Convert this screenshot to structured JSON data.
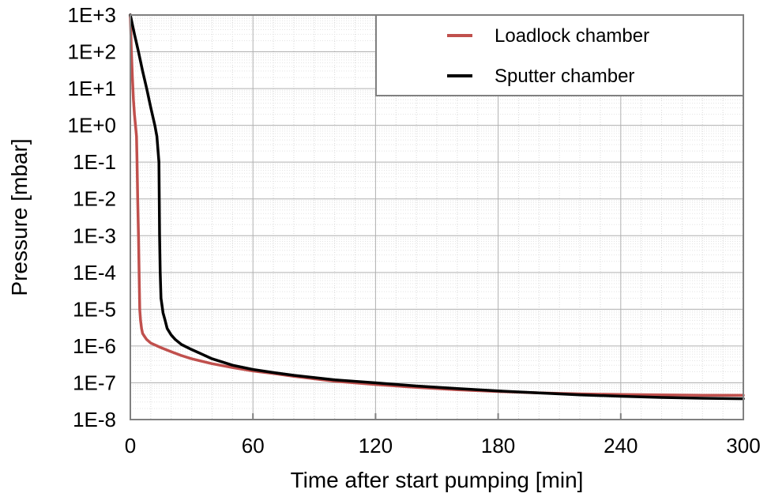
{
  "chart_data": {
    "type": "line",
    "xlabel": "Time after start pumping [min]",
    "ylabel": "Pressure [mbar]",
    "xlim": [
      0,
      300
    ],
    "ylim": [
      1e-08,
      1000
    ],
    "yscale": "log",
    "grid": true,
    "legend_position": "top-right",
    "x_ticks": [
      0,
      60,
      120,
      180,
      240,
      300
    ],
    "x_tick_labels": [
      "0",
      "60",
      "120",
      "180",
      "240",
      "300"
    ],
    "y_ticks": [
      1000.0,
      100.0,
      10.0,
      1.0,
      0.1,
      0.01,
      0.001,
      0.0001,
      1e-05,
      1e-06,
      1e-07,
      1e-08
    ],
    "y_tick_labels": [
      "1E+3",
      "1E+2",
      "1E+1",
      "1E+0",
      "1E-1",
      "1E-2",
      "1E-3",
      "1E-4",
      "1E-5",
      "1E-6",
      "1E-7",
      "1E-8"
    ],
    "series": [
      {
        "name": "Loadlock chamber",
        "color": "#c0504d",
        "x": [
          0,
          0.5,
          1,
          1.5,
          2,
          2.5,
          3,
          3.3,
          3.6,
          4,
          4.3,
          4.6,
          5,
          5.5,
          6,
          7,
          8,
          10,
          15,
          20,
          25,
          30,
          40,
          50,
          60,
          70,
          80,
          100,
          120,
          140,
          160,
          180,
          200,
          220,
          240,
          260,
          280,
          300
        ],
        "y": [
          1000,
          100,
          20,
          5,
          2,
          1,
          0.5,
          0.1,
          0.01,
          0.001,
          0.0001,
          1e-05,
          5e-06,
          3e-06,
          2.2e-06,
          1.8e-06,
          1.5e-06,
          1.2e-06,
          9e-07,
          7e-07,
          5.5e-07,
          4.5e-07,
          3.3e-07,
          2.6e-07,
          2.1e-07,
          1.8e-07,
          1.5e-07,
          1.1e-07,
          9e-08,
          7.5e-08,
          6.5e-08,
          5.8e-08,
          5.3e-08,
          5e-08,
          4.8e-08,
          4.7e-08,
          4.6e-08,
          4.6e-08
        ]
      },
      {
        "name": "Sputter chamber",
        "color": "#000000",
        "x": [
          0,
          2,
          4,
          6,
          8,
          10,
          12,
          13,
          14,
          14.3,
          14.6,
          15,
          16,
          17,
          18,
          20,
          22,
          25,
          30,
          35,
          40,
          50,
          60,
          70,
          80,
          100,
          120,
          140,
          160,
          180,
          200,
          220,
          240,
          260,
          280,
          300
        ],
        "y": [
          1000,
          300,
          100,
          30,
          10,
          3,
          1,
          0.5,
          0.1,
          0.001,
          0.0001,
          2e-05,
          8e-06,
          5e-06,
          3e-06,
          2e-06,
          1.5e-06,
          1.1e-06,
          8e-07,
          6e-07,
          4.5e-07,
          3e-07,
          2.3e-07,
          1.9e-07,
          1.6e-07,
          1.2e-07,
          1e-07,
          8.2e-08,
          7e-08,
          6e-08,
          5.3e-08,
          4.7e-08,
          4.3e-08,
          4e-08,
          3.8e-08,
          3.7e-08
        ]
      }
    ]
  }
}
